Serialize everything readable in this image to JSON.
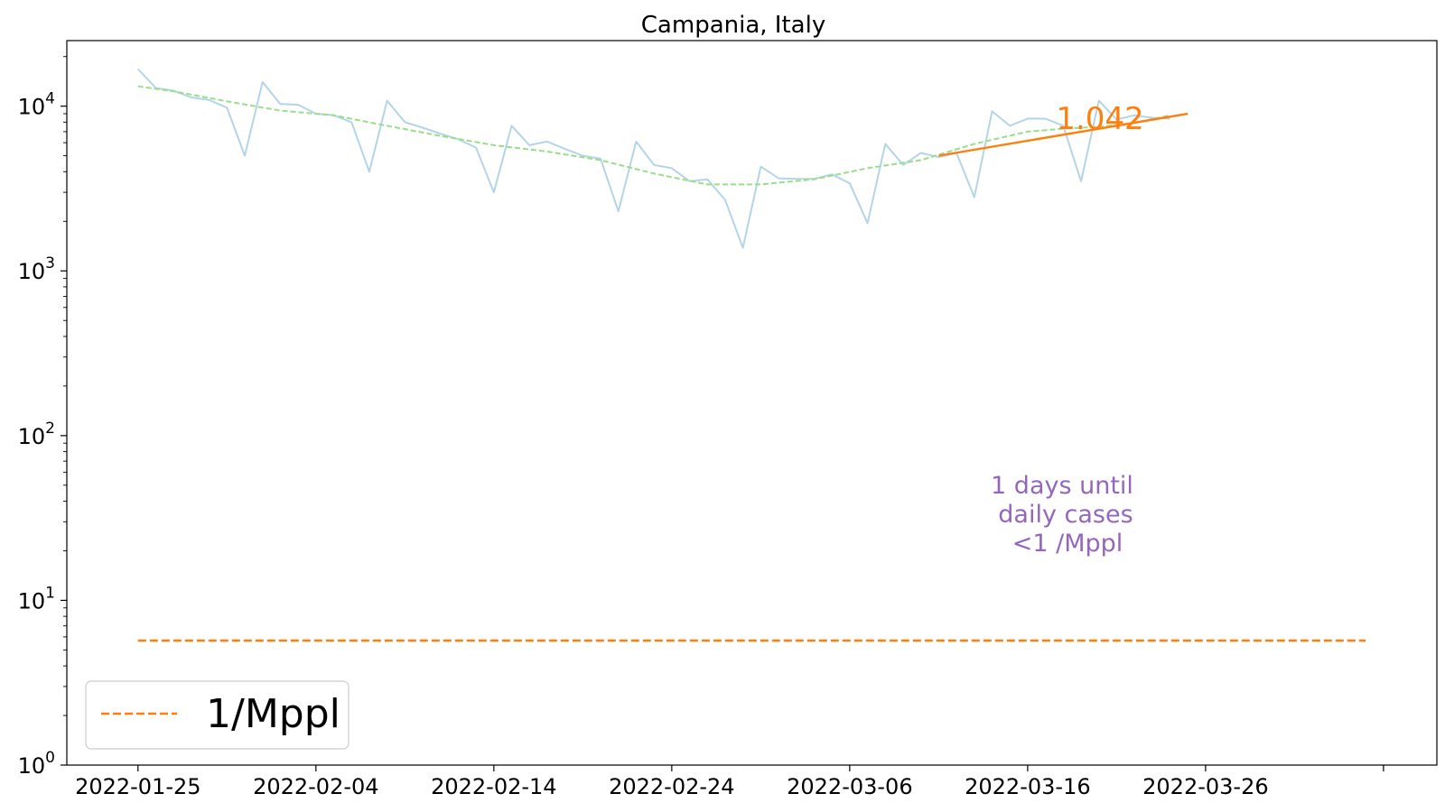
{
  "chart_data": {
    "type": "line",
    "title": "Campania, Italy",
    "xlabel": "",
    "ylabel": "",
    "yscale": "log",
    "ylim": [
      1,
      25000
    ],
    "xlim": [
      "2022-01-21",
      "2022-04-08"
    ],
    "grid": false,
    "legend_position": "lower-left",
    "x_ticks": [
      "2022-01-25",
      "2022-02-04",
      "2022-02-14",
      "2022-02-24",
      "2022-03-06",
      "2022-03-16",
      "2022-03-26",
      "2022-04-05"
    ],
    "x_tick_labels": [
      "2022-01-25",
      "2022-02-04",
      "2022-02-14",
      "2022-02-24",
      "2022-03-06",
      "2022-03-16",
      "2022-03-26",
      ""
    ],
    "y_ticks": [
      1,
      10,
      100,
      1000,
      10000
    ],
    "y_tick_labels": [
      {
        "base": "10",
        "exp": "0"
      },
      {
        "base": "10",
        "exp": "1"
      },
      {
        "base": "10",
        "exp": "2"
      },
      {
        "base": "10",
        "exp": "3"
      },
      {
        "base": "10",
        "exp": "4"
      }
    ],
    "colors": {
      "daily": "#a6cee3",
      "smoothed": "#98df8a",
      "fit": "#ff7f0e",
      "threshold": "#ff7f0e",
      "annotation": "#9467bd"
    },
    "series": [
      {
        "id": "daily",
        "style": "solid",
        "x": [
          "2022-01-25",
          "2022-01-26",
          "2022-01-27",
          "2022-01-28",
          "2022-01-29",
          "2022-01-30",
          "2022-01-31",
          "2022-02-01",
          "2022-02-02",
          "2022-02-03",
          "2022-02-04",
          "2022-02-05",
          "2022-02-06",
          "2022-02-07",
          "2022-02-08",
          "2022-02-09",
          "2022-02-10",
          "2022-02-11",
          "2022-02-12",
          "2022-02-13",
          "2022-02-14",
          "2022-02-15",
          "2022-02-16",
          "2022-02-17",
          "2022-02-18",
          "2022-02-19",
          "2022-02-20",
          "2022-02-21",
          "2022-02-22",
          "2022-02-23",
          "2022-02-24",
          "2022-02-25",
          "2022-02-26",
          "2022-02-27",
          "2022-02-28",
          "2022-03-01",
          "2022-03-02",
          "2022-03-03",
          "2022-03-04",
          "2022-03-05",
          "2022-03-06",
          "2022-03-07",
          "2022-03-08",
          "2022-03-09",
          "2022-03-10",
          "2022-03-11",
          "2022-03-12",
          "2022-03-13",
          "2022-03-14",
          "2022-03-15",
          "2022-03-16",
          "2022-03-17",
          "2022-03-18",
          "2022-03-19",
          "2022-03-20",
          "2022-03-21",
          "2022-03-22",
          "2022-03-23",
          "2022-03-24"
        ],
        "values": [
          16800,
          12900,
          12400,
          11300,
          10900,
          9800,
          5000,
          14000,
          10300,
          10200,
          9000,
          8800,
          8000,
          4000,
          10800,
          8000,
          7400,
          6800,
          6300,
          5600,
          3000,
          7600,
          5800,
          6100,
          5500,
          5000,
          4800,
          2300,
          6100,
          4400,
          4200,
          3500,
          3600,
          2700,
          1380,
          4300,
          3650,
          3620,
          3620,
          3850,
          3400,
          1950,
          5900,
          4400,
          5200,
          4900,
          5200,
          2800,
          9300,
          7600,
          8400,
          8400,
          7600,
          3500,
          10800,
          8300,
          8800,
          8500,
          8400
        ]
      },
      {
        "id": "smoothed",
        "style": "dashed",
        "x": [
          "2022-01-25",
          "2022-01-27",
          "2022-01-30",
          "2022-02-02",
          "2022-02-05",
          "2022-02-08",
          "2022-02-11",
          "2022-02-14",
          "2022-02-17",
          "2022-02-20",
          "2022-02-23",
          "2022-02-26",
          "2022-03-01",
          "2022-03-04",
          "2022-03-07",
          "2022-03-10",
          "2022-03-13",
          "2022-03-16",
          "2022-03-18",
          "2022-03-20",
          "2022-03-22",
          "2022-03-24"
        ],
        "values": [
          13200,
          12300,
          10700,
          9400,
          8800,
          7600,
          6600,
          5800,
          5300,
          4700,
          3900,
          3350,
          3350,
          3600,
          4200,
          4700,
          5900,
          7000,
          7300,
          7500,
          7900,
          8800
        ]
      }
    ],
    "fit_line": {
      "x": [
        "2022-03-11",
        "2022-03-25"
      ],
      "values": [
        5000,
        9000
      ],
      "label": "1.042"
    },
    "threshold": {
      "x": [
        "2022-01-25",
        "2022-04-04"
      ],
      "value": 5.7,
      "legend_label": "1/Mppl"
    },
    "annotation": {
      "lines": [
        "1 days until",
        "daily cases",
        "<1 /Mppl"
      ]
    }
  }
}
